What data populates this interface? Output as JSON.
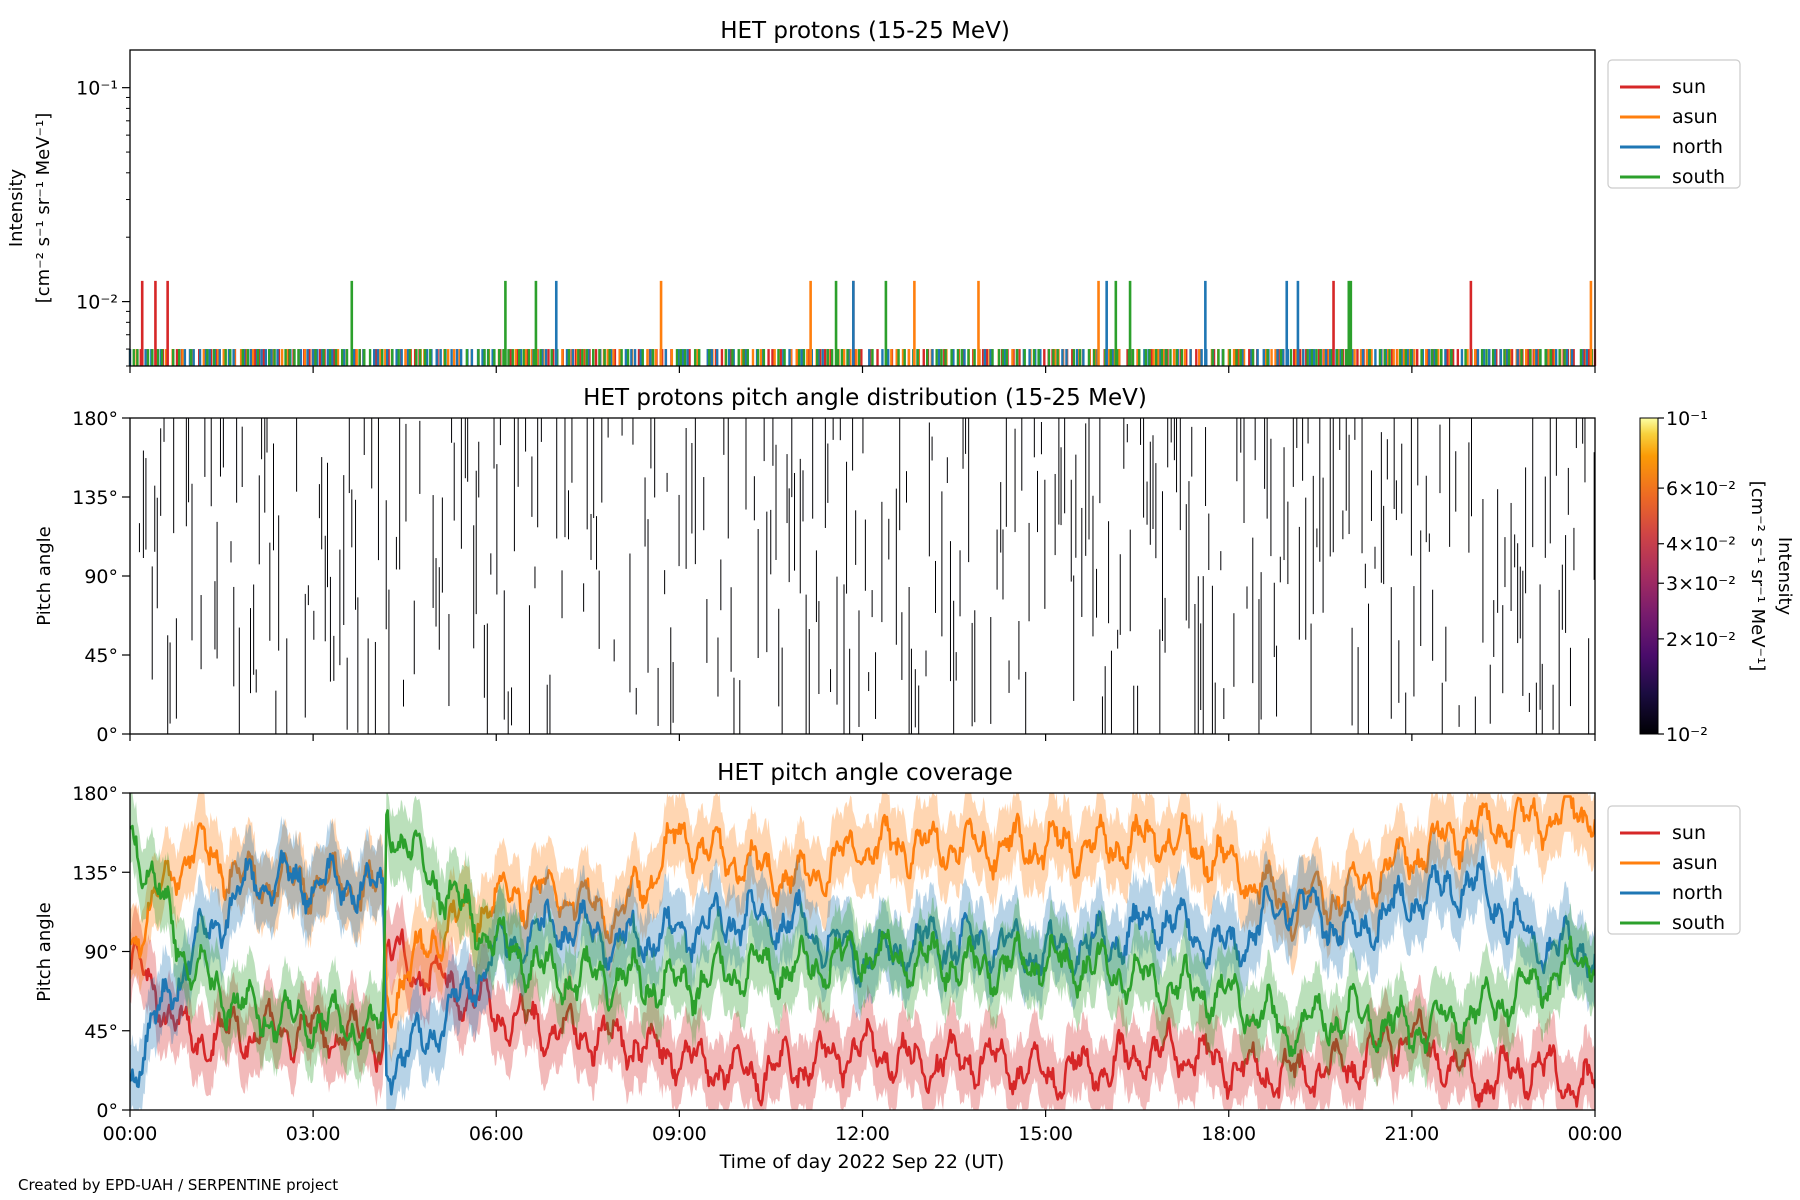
{
  "footer": {
    "credit": "Created by EPD-UAH / SERPENTINE project"
  },
  "colors": {
    "sun": "#d62728",
    "asun": "#ff7f0e",
    "north": "#1f77b4",
    "south": "#2ca02c"
  },
  "chart_data": [
    {
      "type": "line",
      "title": "HET protons (15-25 MeV)",
      "ylabel": "Intensity",
      "yunits": "[cm⁻² s⁻¹ sr⁻¹ MeV⁻¹]",
      "yscale": "log",
      "ylim": [
        0.005,
        0.15
      ],
      "yticks": [
        {
          "value": 0.1,
          "label": "10⁻¹"
        },
        {
          "value": 0.01,
          "label": "10⁻²"
        }
      ],
      "xlim": [
        "2022-09-22T00:00",
        "2022-09-23T00:00"
      ],
      "legend": "right-outside",
      "baseline_value": 0.006,
      "series": [
        {
          "name": "sun",
          "color": "#d62728",
          "spike_value": 0.0125,
          "spike_times": [
            "00:12",
            "00:25",
            "00:37",
            "11:51",
            "19:43",
            "21:58"
          ]
        },
        {
          "name": "asun",
          "color": "#ff7f0e",
          "spike_times": [
            "08:42",
            "11:09",
            "12:51",
            "13:54",
            "15:52",
            "23:56"
          ]
        },
        {
          "name": "north",
          "color": "#1f77b4",
          "spike_value": 0.0125,
          "spike_times": [
            "06:59",
            "11:51",
            "16:00",
            "17:37",
            "18:57",
            "19:08"
          ]
        },
        {
          "name": "south",
          "color": "#2ca02c",
          "spike_value": 0.0125,
          "spike_times": [
            "03:38",
            "06:09",
            "06:39",
            "11:34",
            "12:23",
            "16:09",
            "16:23",
            "19:58",
            "20:00"
          ]
        }
      ]
    },
    {
      "type": "heatmap",
      "title": "HET protons pitch angle distribution (15-25 MeV)",
      "ylabel": "Pitch angle",
      "ylim": [
        0,
        180
      ],
      "yticks": [
        "0°",
        "45°",
        "90°",
        "135°",
        "180°"
      ],
      "xlim": [
        "2022-09-22T00:00",
        "2022-09-23T00:00"
      ],
      "colorbar": {
        "label": "Intensity",
        "units": "[cm⁻² s⁻¹ sr⁻¹ MeV⁻¹]",
        "scale": "log",
        "range": [
          0.01,
          0.1
        ],
        "ticks": [
          {
            "value": 0.1,
            "label": "10⁻¹"
          },
          {
            "value": 0.06,
            "label": "6×10⁻²"
          },
          {
            "value": 0.04,
            "label": "4×10⁻²"
          },
          {
            "value": 0.03,
            "label": "3×10⁻²"
          },
          {
            "value": 0.02,
            "label": "2×10⁻²"
          },
          {
            "value": 0.01,
            "label": "10⁻²"
          }
        ]
      }
    },
    {
      "type": "line",
      "title": "HET pitch angle coverage",
      "ylabel": "Pitch angle",
      "ylim": [
        0,
        180
      ],
      "yticks": [
        "0°",
        "45°",
        "90°",
        "135°",
        "180°"
      ],
      "xlim": [
        "2022-09-22T00:00",
        "2022-09-23T00:00"
      ],
      "xlabel": "Time of day 2022 Sep 22 (UT)",
      "xticks": [
        "00:00",
        "03:00",
        "06:00",
        "09:00",
        "12:00",
        "15:00",
        "18:00",
        "21:00",
        "00:00"
      ],
      "legend": "right-outside",
      "band_halfwidth_deg": 20,
      "series": [
        {
          "name": "sun",
          "color": "#d62728",
          "x_hours": [
            0,
            1,
            2,
            3,
            4.15,
            4.2,
            5,
            6,
            7,
            8,
            9,
            10,
            11,
            12,
            13,
            14,
            15,
            16,
            17,
            18,
            19,
            20,
            21,
            22,
            23,
            24
          ],
          "values": [
            85,
            40,
            45,
            45,
            40,
            90,
            75,
            55,
            45,
            40,
            30,
            20,
            25,
            35,
            25,
            30,
            20,
            25,
            35,
            25,
            20,
            25,
            45,
            15,
            25,
            10
          ]
        },
        {
          "name": "asun",
          "color": "#ff7f0e",
          "x_hours": [
            0,
            1,
            2,
            3,
            4.15,
            4.2,
            5,
            6,
            7,
            8,
            9,
            10,
            11,
            12,
            13,
            14,
            15,
            16,
            17,
            18,
            19,
            20,
            21,
            22,
            23,
            24
          ],
          "values": [
            95,
            150,
            130,
            130,
            125,
            60,
            100,
            120,
            125,
            110,
            155,
            140,
            130,
            150,
            150,
            150,
            150,
            150,
            155,
            140,
            115,
            125,
            145,
            160,
            165,
            170
          ]
        },
        {
          "name": "north",
          "color": "#1f77b4",
          "x_hours": [
            0,
            1,
            2,
            3,
            4.15,
            4.2,
            5,
            6,
            7,
            8,
            9,
            10,
            11,
            12,
            13,
            14,
            15,
            16,
            17,
            18,
            19,
            20,
            21,
            22,
            23,
            24
          ],
          "values": [
            20,
            90,
            130,
            130,
            125,
            25,
            45,
            90,
            105,
            95,
            100,
            110,
            105,
            85,
            95,
            95,
            90,
            95,
            110,
            90,
            120,
            100,
            120,
            130,
            95,
            90
          ]
        },
        {
          "name": "south",
          "color": "#2ca02c",
          "x_hours": [
            0,
            1,
            2,
            3,
            4.15,
            4.2,
            5,
            6,
            7,
            8,
            9,
            10,
            11,
            12,
            13,
            14,
            15,
            16,
            17,
            18,
            19,
            20,
            21,
            22,
            23,
            24
          ],
          "values": [
            160,
            80,
            55,
            50,
            45,
            165,
            130,
            95,
            75,
            75,
            70,
            80,
            80,
            90,
            85,
            80,
            85,
            80,
            70,
            65,
            45,
            55,
            45,
            55,
            70,
            90
          ]
        }
      ]
    }
  ]
}
